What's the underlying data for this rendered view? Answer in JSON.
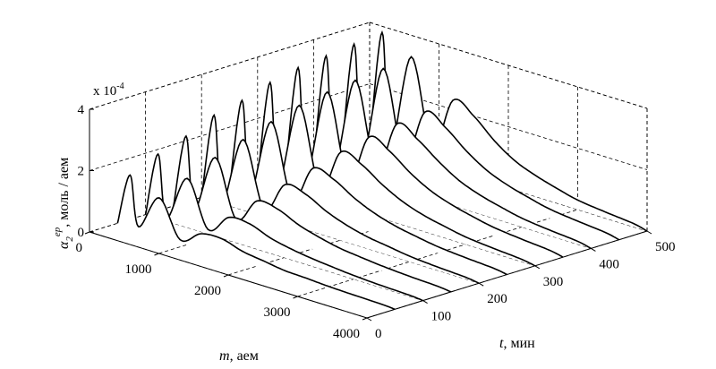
{
  "chart_data": {
    "type": "line",
    "projection": "3d-waterfall",
    "grid": true,
    "exponent_label": "x 10",
    "exponent_power": "-4",
    "axes": {
      "m": {
        "ticks": [
          0,
          1000,
          2000,
          3000,
          4000
        ],
        "label_var": "m",
        "label_unit": ", аем",
        "range": [
          0,
          4000
        ]
      },
      "t": {
        "ticks": [
          0,
          100,
          200,
          300,
          400,
          500
        ],
        "label_var": "t",
        "label_unit": ", мин",
        "range": [
          0,
          500
        ]
      },
      "z": {
        "ticks": [
          0,
          2,
          4
        ],
        "label_main": "α",
        "label_sub": "2",
        "label_sup": "ep",
        "label_unit": ", моль / аем",
        "range": [
          0,
          4
        ]
      }
    },
    "series": [
      {
        "t": 50,
        "x": [
          0,
          180,
          300,
          600,
          900,
          1200,
          1500,
          1800,
          2100,
          2400,
          2700,
          3000,
          3400,
          3800,
          4000
        ],
        "y": [
          0,
          1.7,
          0.1,
          1.25,
          0.1,
          0.5,
          0.55,
          0.35,
          0.25,
          0.15,
          0.12,
          0.08,
          0.05,
          0.03,
          0
        ]
      },
      {
        "t": 100,
        "x": [
          0,
          180,
          300,
          600,
          900,
          1200,
          1500,
          1800,
          2100,
          2400,
          2700,
          3000,
          3400,
          3800,
          4000
        ],
        "y": [
          0,
          2.1,
          0.1,
          1.6,
          0.15,
          0.75,
          0.75,
          0.5,
          0.35,
          0.25,
          0.18,
          0.12,
          0.07,
          0.04,
          0
        ]
      },
      {
        "t": 150,
        "x": [
          0,
          180,
          300,
          600,
          900,
          1200,
          1500,
          1800,
          2100,
          2400,
          2700,
          3000,
          3400,
          3800,
          4000
        ],
        "y": [
          0,
          2.4,
          0.1,
          2.0,
          0.2,
          1.0,
          0.95,
          0.65,
          0.45,
          0.3,
          0.22,
          0.15,
          0.09,
          0.05,
          0
        ]
      },
      {
        "t": 200,
        "x": [
          0,
          180,
          300,
          600,
          900,
          1200,
          1500,
          1800,
          2100,
          2400,
          2700,
          3000,
          3400,
          3800,
          4000
        ],
        "y": [
          0,
          2.8,
          0.1,
          2.3,
          0.25,
          1.25,
          1.15,
          0.8,
          0.55,
          0.38,
          0.28,
          0.18,
          0.11,
          0.06,
          0
        ]
      },
      {
        "t": 250,
        "x": [
          0,
          180,
          300,
          600,
          900,
          1200,
          1500,
          1800,
          2100,
          2400,
          2700,
          3000,
          3400,
          3800,
          4000
        ],
        "y": [
          0,
          3.0,
          0.1,
          2.6,
          0.3,
          1.5,
          1.35,
          0.95,
          0.65,
          0.45,
          0.32,
          0.21,
          0.13,
          0.07,
          0
        ]
      },
      {
        "t": 300,
        "x": [
          0,
          180,
          300,
          600,
          900,
          1200,
          1500,
          1800,
          2100,
          2400,
          2700,
          3000,
          3400,
          3800,
          4000
        ],
        "y": [
          0,
          3.3,
          0.1,
          2.85,
          0.35,
          1.75,
          1.55,
          1.1,
          0.75,
          0.52,
          0.37,
          0.24,
          0.15,
          0.08,
          0
        ]
      },
      {
        "t": 350,
        "x": [
          0,
          180,
          300,
          600,
          900,
          1200,
          1500,
          1800,
          2100,
          2400,
          2700,
          3000,
          3400,
          3800,
          4000
        ],
        "y": [
          0,
          3.5,
          0.1,
          3.0,
          0.4,
          1.95,
          1.7,
          1.2,
          0.82,
          0.58,
          0.41,
          0.27,
          0.17,
          0.09,
          0
        ]
      },
      {
        "t": 400,
        "x": [
          0,
          180,
          300,
          600,
          900,
          1200,
          1500,
          1800,
          2100,
          2400,
          2700,
          3000,
          3400,
          3800,
          4000
        ],
        "y": [
          0,
          3.6,
          0.1,
          3.1,
          0.45,
          2.1,
          1.8,
          1.3,
          0.88,
          0.62,
          0.44,
          0.29,
          0.18,
          0.1,
          0
        ]
      },
      {
        "t": 450,
        "x": [
          0,
          180,
          300,
          600,
          900,
          1200,
          1500,
          1800,
          2100,
          2400,
          2700,
          3000,
          3400,
          3800,
          4000
        ],
        "y": [
          0,
          3.7,
          0.1,
          3.2,
          0.5,
          2.2,
          1.9,
          1.35,
          0.92,
          0.65,
          0.46,
          0.3,
          0.19,
          0.1,
          0
        ]
      },
      {
        "t": 500,
        "x": [
          0,
          180,
          300,
          600,
          900,
          1200,
          1500,
          1800,
          2100,
          2400,
          2700,
          3000,
          3400,
          3800,
          4000
        ],
        "y": [
          0,
          3.8,
          0.1,
          3.3,
          0.55,
          2.3,
          2.0,
          1.4,
          0.95,
          0.68,
          0.48,
          0.31,
          0.2,
          0.11,
          0
        ]
      }
    ]
  }
}
